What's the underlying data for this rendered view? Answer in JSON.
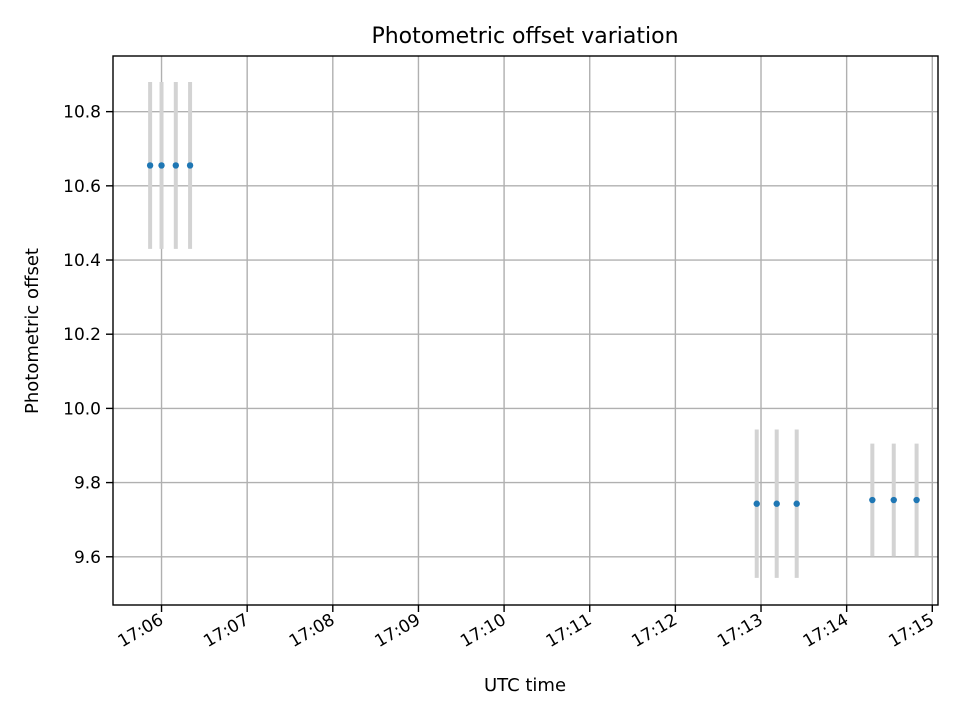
{
  "chart_data": {
    "type": "scatter",
    "title": "Photometric offset variation",
    "xlabel": "UTC time",
    "ylabel": "Photometric offset",
    "grid": true,
    "x_ticks": [
      "17:06",
      "17:07",
      "17:08",
      "17:09",
      "17:10",
      "17:11",
      "17:12",
      "17:13",
      "17:14",
      "17:15"
    ],
    "xlim": [
      "17:05:26",
      "17:15:04"
    ],
    "y_ticks": [
      9.6,
      9.8,
      10.0,
      10.2,
      10.4,
      10.6,
      10.8
    ],
    "ylim": [
      9.47,
      10.95
    ],
    "colors": {
      "points": "#1f77b4",
      "error_bars": "#d3d3d3"
    },
    "series": [
      {
        "x": [
          "17:05:52",
          "17:06:00",
          "17:06:10",
          "17:06:20",
          "17:12:57",
          "17:13:11",
          "17:13:25",
          "17:14:18",
          "17:14:33",
          "17:14:49"
        ],
        "y": [
          10.655,
          10.655,
          10.655,
          10.655,
          9.743,
          9.743,
          9.743,
          9.753,
          9.753,
          9.753
        ],
        "yerr": [
          0.225,
          0.225,
          0.225,
          0.225,
          0.2,
          0.2,
          0.2,
          0.152,
          0.152,
          0.152
        ]
      }
    ]
  }
}
